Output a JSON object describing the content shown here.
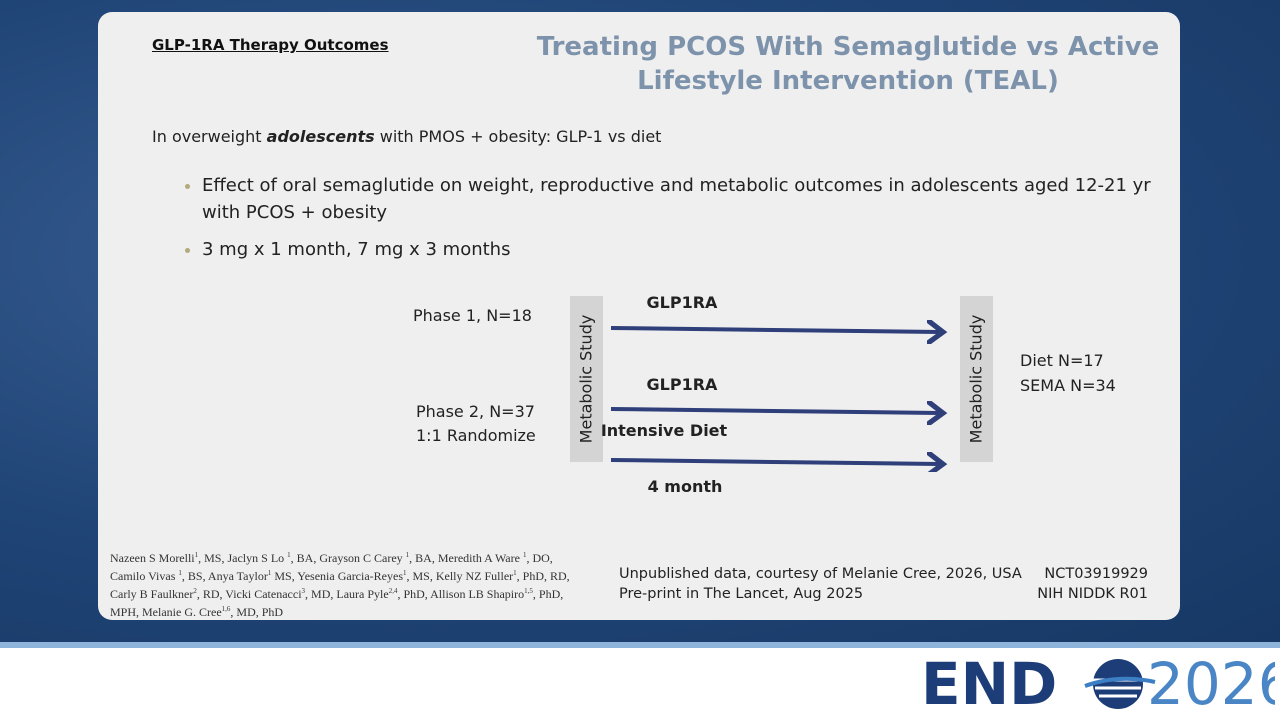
{
  "header": {
    "label": "GLP-1RA Therapy Outcomes",
    "title_lines": [
      "Treating PCOS With Semaglutide vs Active",
      "Lifestyle Intervention (TEAL)"
    ]
  },
  "intro": {
    "before": "In overweight ",
    "emphasis": "adolescents",
    "after": " with PMOS + obesity: GLP-1 vs diet"
  },
  "bullets": [
    "Effect of oral semaglutide on weight, reproductive and metabolic outcomes in adolescents aged 12-21 yr with PCOS + obesity",
    "3 mg x 1 month, 7 mg x 3 months"
  ],
  "diagram": {
    "phase1": "Phase 1, N=18",
    "phase2_lines": [
      "Phase 2, N=37",
      "1:1 Randomize"
    ],
    "box_label": "Metabolic Study",
    "arrows": [
      "GLP1RA",
      "GLP1RA",
      "Intensive Diet"
    ],
    "duration": "4 month",
    "results": [
      "Diet N=17",
      "SEMA N=34"
    ]
  },
  "authors": [
    {
      "name": "Nazeen S Morelli",
      "sup": "1",
      "after": ", MS, "
    },
    {
      "name": "Jaclyn S Lo ",
      "sup": "1",
      "after": ", BA, "
    },
    {
      "name": "Grayson C Carey ",
      "sup": "1",
      "after": ", BA, "
    },
    {
      "name": "Meredith A Ware ",
      "sup": "1",
      "after": ", DO, "
    },
    {
      "name": "Camilo Vivas ",
      "sup": "1",
      "after": ", BS, "
    },
    {
      "name": "Anya Taylor",
      "sup": "1",
      "after": " MS, "
    },
    {
      "name": "Yesenia Garcia-Reyes",
      "sup": "1",
      "after": ", MS, "
    },
    {
      "name": "Kelly NZ Fuller",
      "sup": "1",
      "after": ", PhD, RD, "
    },
    {
      "name": "Carly B Faulkner",
      "sup": "2",
      "after": ", RD, "
    },
    {
      "name": "Vicki Catenacci",
      "sup": "3",
      "after": ", MD, "
    },
    {
      "name": "Laura Pyle",
      "sup": "2,4",
      "after": ", PhD, "
    },
    {
      "name": "Allison LB Shapiro",
      "sup": "1,5",
      "after": ", PhD, MPH, "
    },
    {
      "name": "Melanie G. Cree",
      "sup": "1,6",
      "after": ", MD, PhD"
    }
  ],
  "footer": {
    "notes": [
      "Unpublished data, courtesy of Melanie Cree, 2026, USA",
      "Pre-print in The Lancet, Aug 2025"
    ],
    "ids": [
      "NCT03919929",
      "NIH NIDDK R01"
    ]
  },
  "logo": {
    "left": "END",
    "right": "2026"
  }
}
